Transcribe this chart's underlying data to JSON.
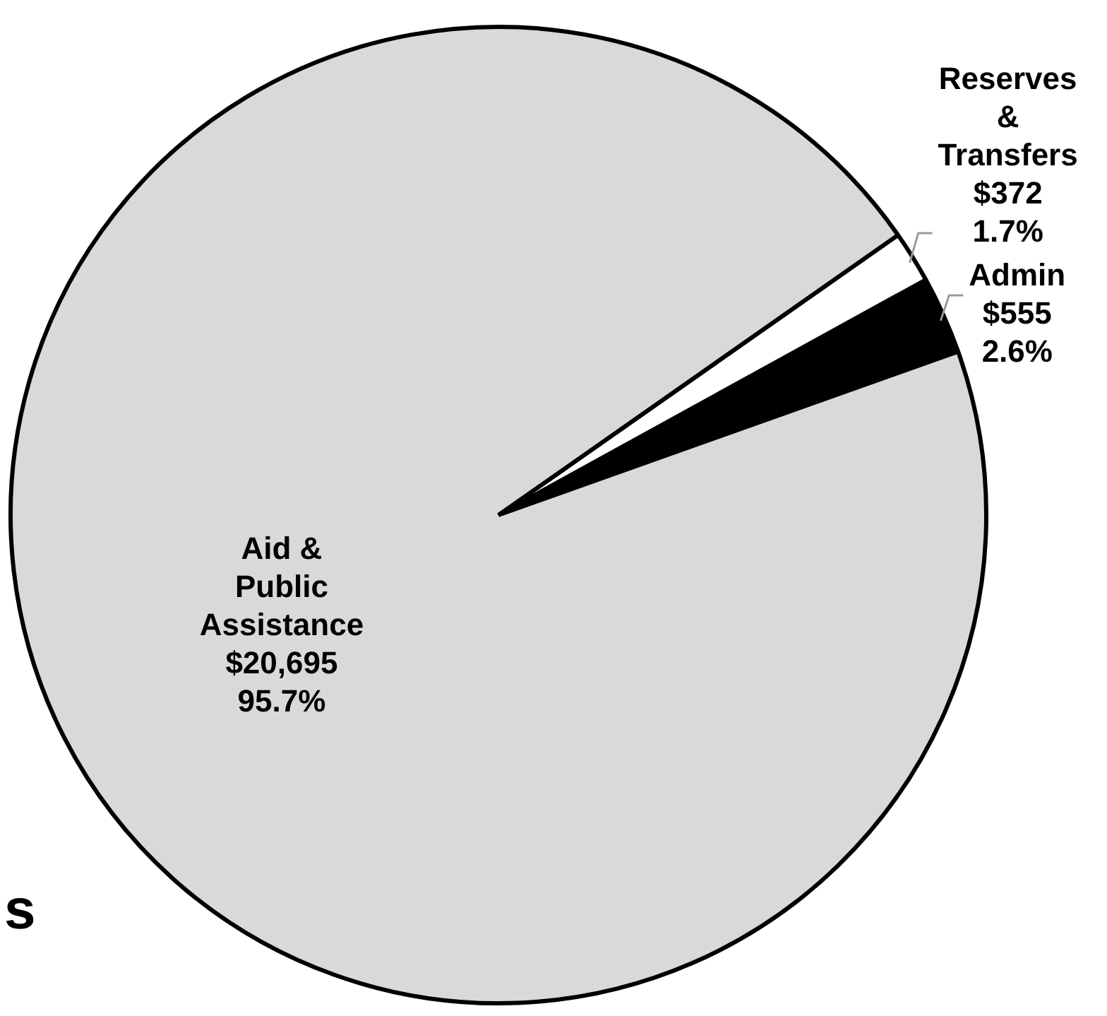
{
  "chart_data": {
    "type": "pie",
    "categories": [
      "Reserves & Transfers",
      "Admin",
      "Aid & Public Assistance"
    ],
    "values": [
      372,
      555,
      20695
    ],
    "colors": [
      "#ffffff",
      "#000000",
      "#d9d9d9"
    ],
    "value_labels": [
      "$372\n1.7%",
      "$555\n2.6%",
      "$20,695\n95.7%"
    ],
    "annotations": [
      "s"
    ],
    "legend": false
  }
}
